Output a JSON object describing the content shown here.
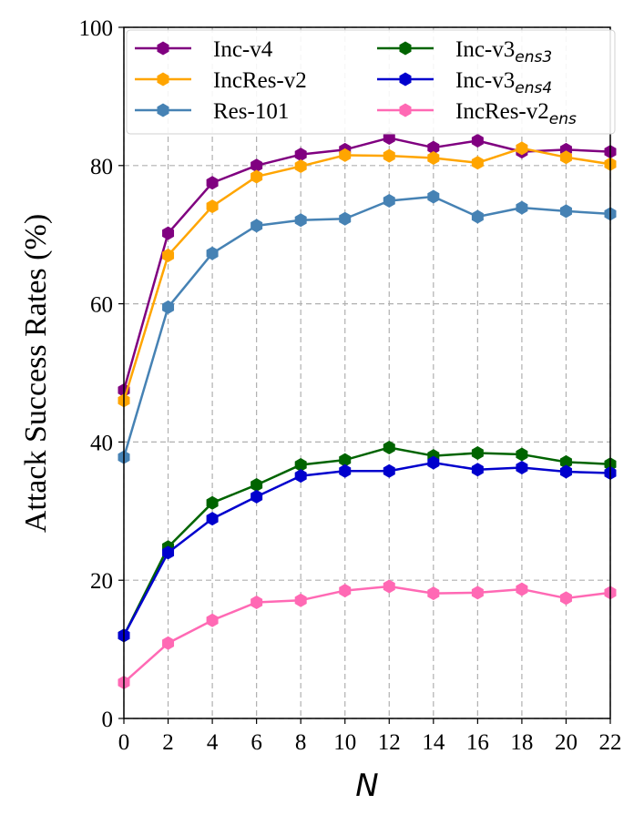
{
  "chart_data": {
    "type": "line",
    "title": "",
    "xlabel": "N",
    "ylabel": "Attack Success Rates (%)",
    "x": [
      0,
      2,
      4,
      6,
      8,
      10,
      12,
      14,
      16,
      18,
      20,
      22
    ],
    "xticks": [
      "0",
      "2",
      "4",
      "6",
      "8",
      "10",
      "12",
      "14",
      "16",
      "18",
      "20",
      "22"
    ],
    "yticks": [
      "0",
      "20",
      "40",
      "60",
      "80",
      "100"
    ],
    "xlim": [
      0,
      22
    ],
    "ylim": [
      0,
      100
    ],
    "grid": true,
    "legend_position": "top",
    "series": [
      {
        "name": "Inc-v4",
        "label_main": "Inc-v4",
        "label_sub": "",
        "color": "#800080",
        "values": [
          47.5,
          70.2,
          77.5,
          80.0,
          81.6,
          82.3,
          84.0,
          82.6,
          83.6,
          82.0,
          82.3,
          82.0
        ]
      },
      {
        "name": "IncRes-v2",
        "label_main": "IncRes-v2",
        "label_sub": "",
        "color": "#FFA500",
        "values": [
          46.0,
          67.0,
          74.1,
          78.4,
          79.9,
          81.5,
          81.4,
          81.1,
          80.4,
          82.5,
          81.2,
          80.2
        ]
      },
      {
        "name": "Res-101",
        "label_main": "Res-101",
        "label_sub": "",
        "color": "#4682B4",
        "values": [
          37.8,
          59.5,
          67.3,
          71.3,
          72.1,
          72.3,
          74.9,
          75.5,
          72.6,
          73.9,
          73.4,
          73.0
        ]
      },
      {
        "name": "Inc-v3ens3",
        "label_main": "Inc-v3",
        "label_sub": "ens3",
        "color": "#006400",
        "values": [
          12.0,
          24.8,
          31.2,
          33.8,
          36.7,
          37.4,
          39.2,
          38.0,
          38.4,
          38.2,
          37.1,
          36.8
        ]
      },
      {
        "name": "Inc-v3ens4",
        "label_main": "Inc-v3",
        "label_sub": "ens4",
        "color": "#0000CD",
        "values": [
          12.0,
          24.0,
          28.9,
          32.1,
          35.1,
          35.8,
          35.8,
          37.0,
          36.0,
          36.3,
          35.7,
          35.5
        ]
      },
      {
        "name": "IncRes-v2ens",
        "label_main": "IncRes-v2",
        "label_sub": "ens",
        "color": "#FF69B4",
        "values": [
          5.2,
          10.9,
          14.2,
          16.8,
          17.1,
          18.5,
          19.1,
          18.1,
          18.2,
          18.7,
          17.4,
          18.2
        ]
      }
    ]
  }
}
